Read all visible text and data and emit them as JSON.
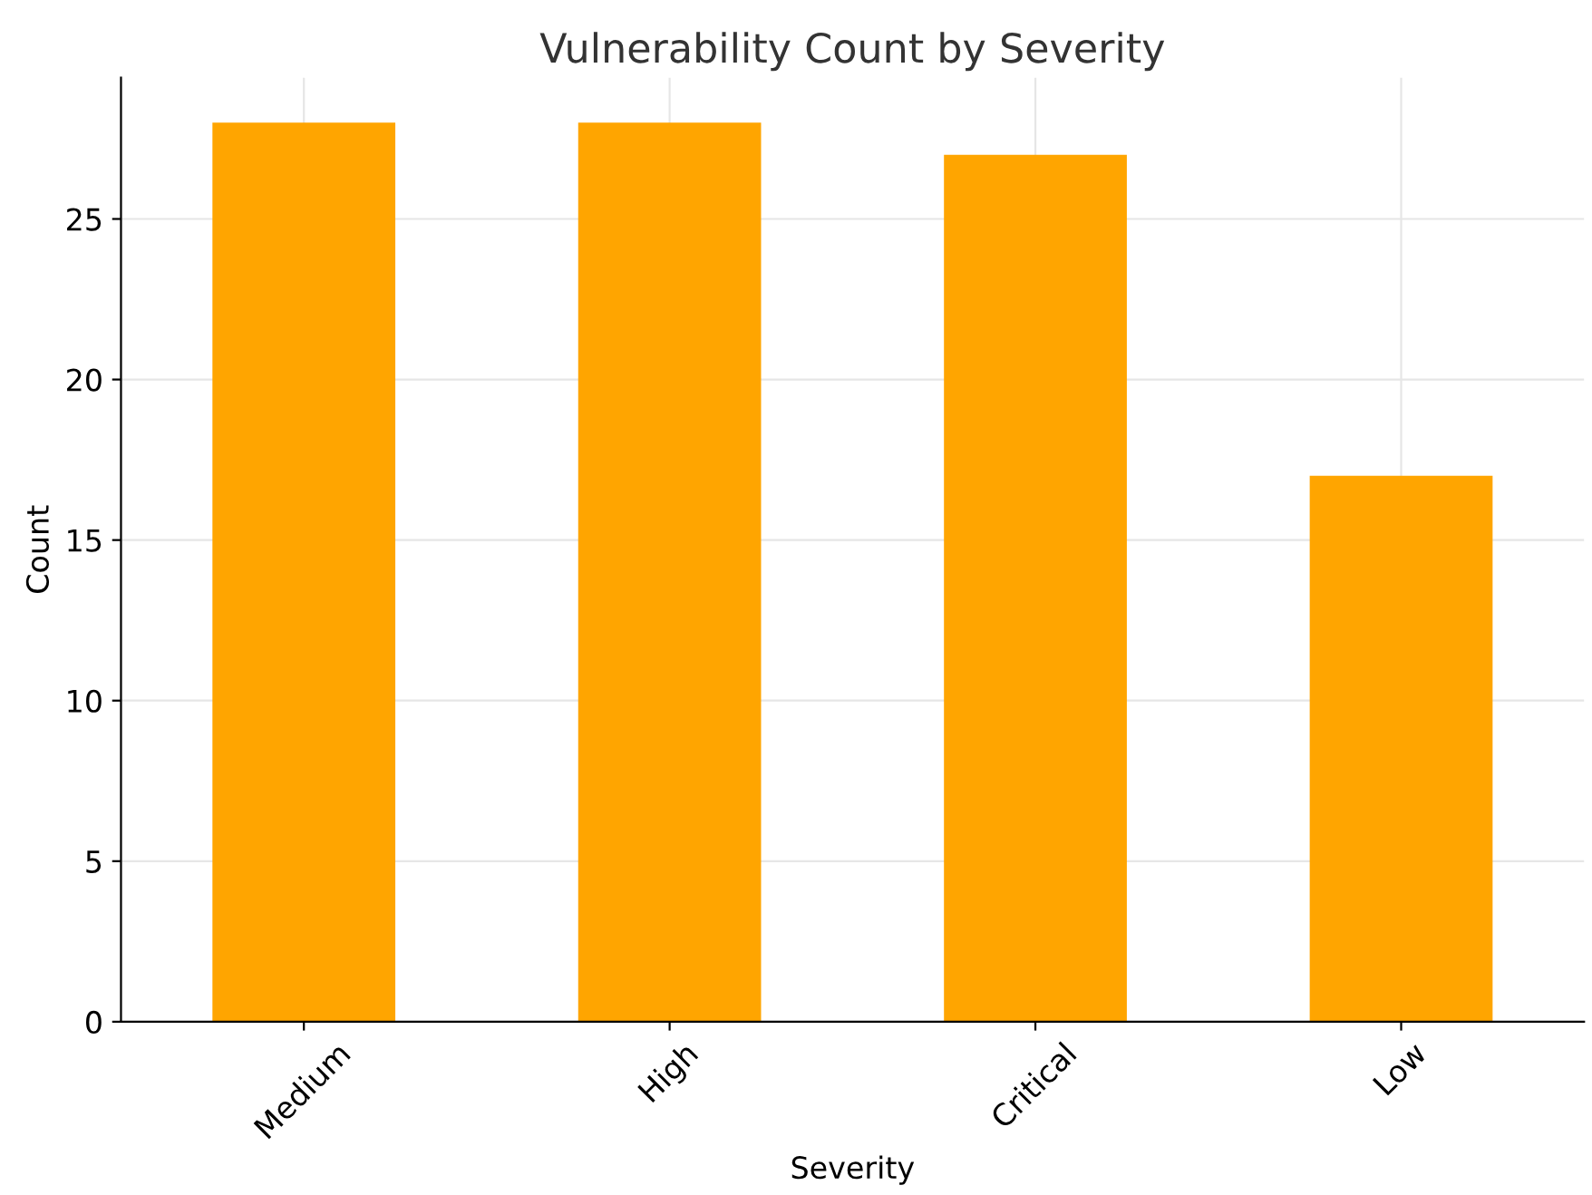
{
  "chart_data": {
    "type": "bar",
    "title": "Vulnerability Count by Severity",
    "xlabel": "Severity",
    "ylabel": "Count",
    "categories": [
      "Medium",
      "High",
      "Critical",
      "Low"
    ],
    "values": [
      28,
      28,
      27,
      17
    ],
    "color": "#ffa500",
    "ylim": [
      0,
      29.4
    ],
    "yticks": [
      0,
      5,
      10,
      15,
      20,
      25
    ],
    "grid": true
  }
}
